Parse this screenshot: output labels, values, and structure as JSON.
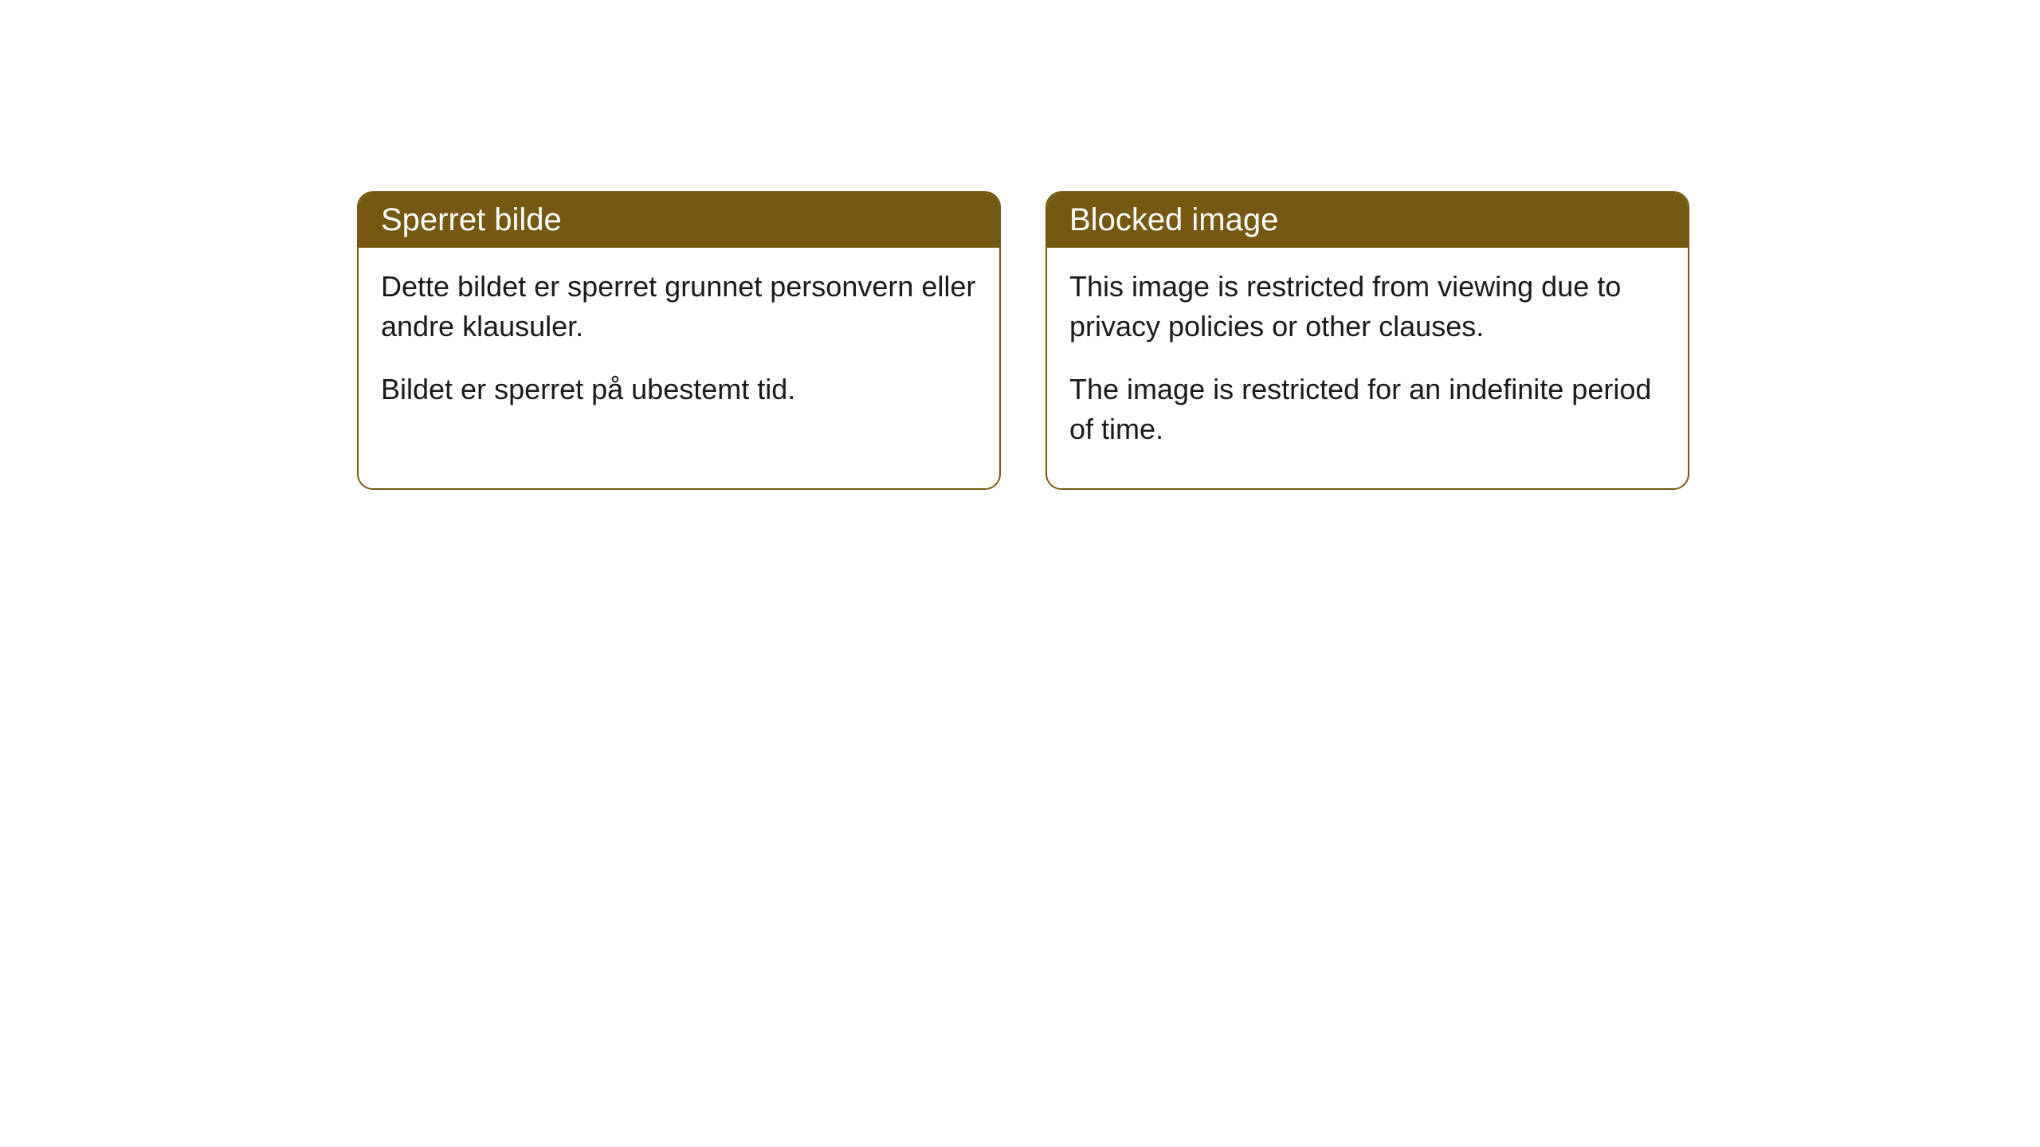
{
  "cards": [
    {
      "title": "Sperret bilde",
      "paragraph1": "Dette bildet er sperret grunnet personvern eller andre klausuler.",
      "paragraph2": "Bildet er sperret på ubestemt tid."
    },
    {
      "title": "Blocked image",
      "paragraph1": "This image is restricted from viewing due to privacy policies or other clauses.",
      "paragraph2": "The image is restricted for an indefinite period of time."
    }
  ],
  "styling": {
    "header_bg_color": "#755912",
    "header_text_color": "#ffffff",
    "border_color": "#755912",
    "body_text_color": "#1a1a1a",
    "card_bg_color": "#ffffff",
    "page_bg_color": "#ffffff",
    "border_radius": 20,
    "title_fontsize": 40,
    "body_fontsize": 36
  }
}
